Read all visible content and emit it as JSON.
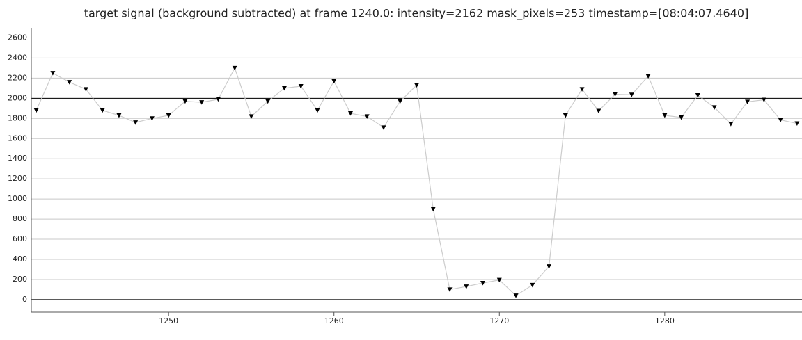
{
  "chart_data": {
    "type": "line",
    "title": "target signal (background subtracted) at frame 1240.0: intensity=2162 mask_pixels=253 timestamp=[08:04:07.4640]",
    "x": [
      1242,
      1243,
      1244,
      1245,
      1246,
      1247,
      1248,
      1249,
      1250,
      1251,
      1252,
      1253,
      1254,
      1255,
      1256,
      1257,
      1258,
      1259,
      1260,
      1261,
      1262,
      1263,
      1264,
      1265,
      1266,
      1267,
      1268,
      1269,
      1270,
      1271,
      1272,
      1273,
      1274,
      1275,
      1276,
      1277,
      1278,
      1279,
      1280,
      1281,
      1282,
      1283,
      1284,
      1285,
      1286,
      1287,
      1288
    ],
    "series": [
      {
        "color": "#cccccc",
        "marker_color": "#000000",
        "values": [
          1880,
          2250,
          2160,
          2090,
          1880,
          1830,
          1760,
          1800,
          1830,
          1970,
          1960,
          1990,
          2300,
          1820,
          1970,
          2100,
          2120,
          1880,
          2170,
          1850,
          1820,
          1710,
          1970,
          2130,
          900,
          100,
          130,
          165,
          195,
          40,
          145,
          330,
          1830,
          2090,
          1875,
          2040,
          2035,
          2220,
          1830,
          1810,
          2030,
          1910,
          1745,
          1965,
          1985,
          1785,
          1750
        ]
      }
    ],
    "xlim": [
      1241.7,
      1288.3
    ],
    "xticks": [
      1250,
      1260,
      1270,
      1280
    ],
    "ylim": [
      -125,
      2700
    ],
    "yticks": [
      0,
      200,
      400,
      600,
      800,
      1000,
      1200,
      1400,
      1600,
      1800,
      2000,
      2200,
      2400,
      2600
    ],
    "highlight_lines": [
      0,
      2000
    ],
    "grid": true
  }
}
